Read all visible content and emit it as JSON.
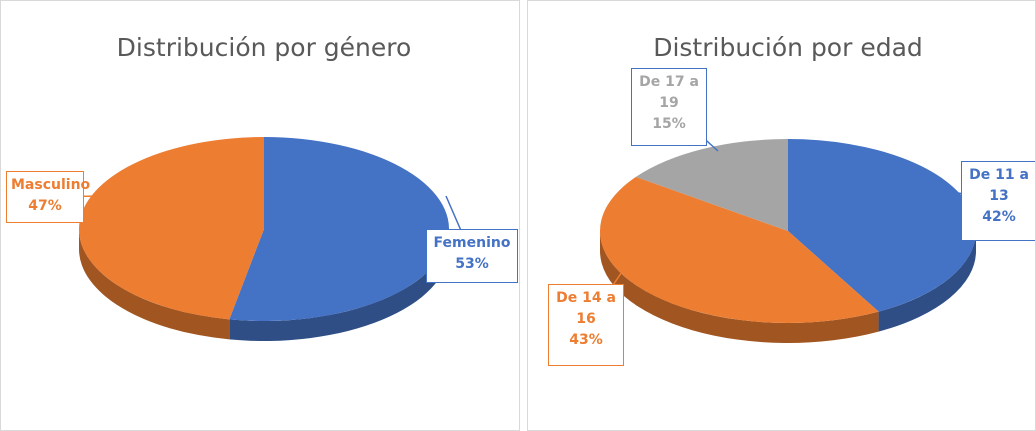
{
  "chart_data": [
    {
      "type": "pie",
      "title": "Distribución por género",
      "categories": [
        "Femenino",
        "Masculino"
      ],
      "values": [
        53,
        47
      ],
      "value_labels": [
        "53%",
        "47%"
      ],
      "colors": [
        "#4472c4",
        "#ed7d31"
      ]
    },
    {
      "type": "pie",
      "title": "Distribución por edad",
      "categories": [
        "De 11 a 13",
        "De 14 a 16",
        "De 17 a 19"
      ],
      "values": [
        42,
        43,
        15
      ],
      "value_labels": [
        "42%",
        "43%",
        "15%"
      ],
      "colors": [
        "#4472c4",
        "#ed7d31",
        "#a5a5a5"
      ]
    }
  ]
}
